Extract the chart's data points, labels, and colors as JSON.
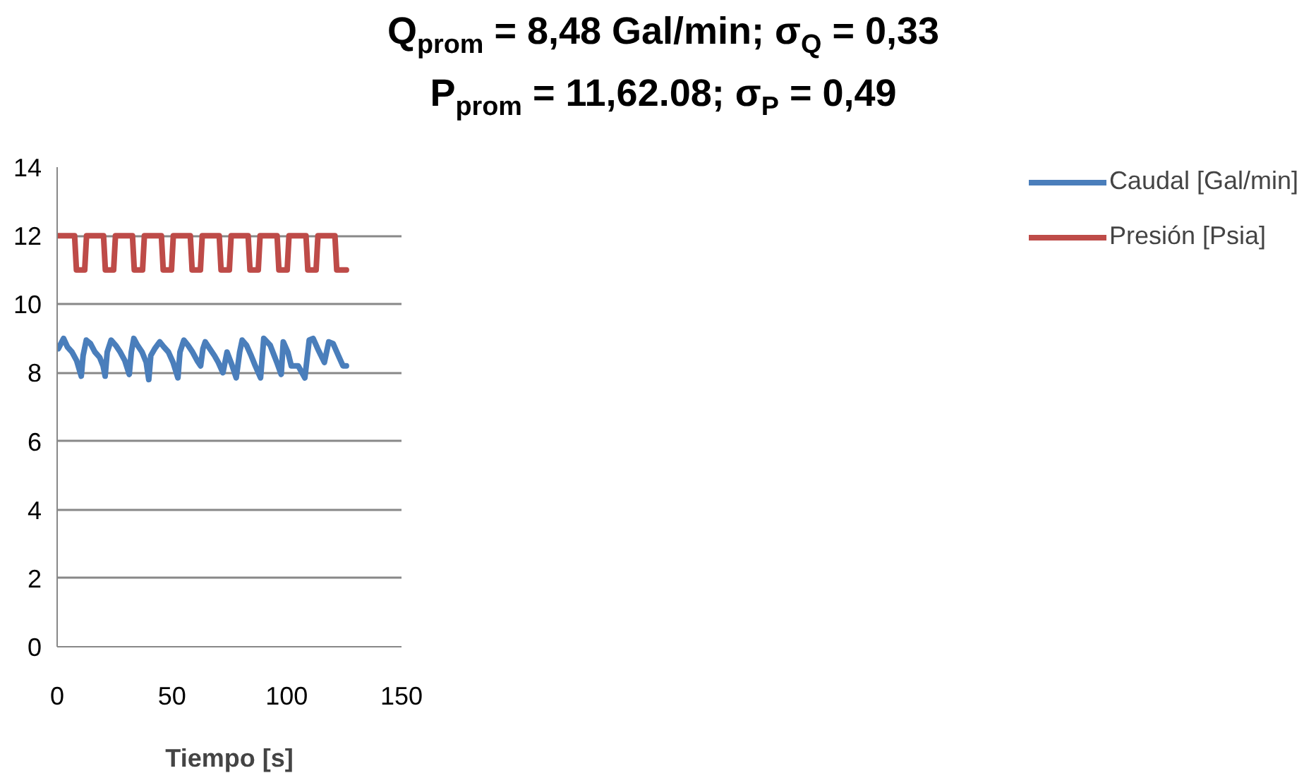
{
  "chart_data": {
    "type": "line",
    "title": "Q$_{prom}$ = 8,48 Gal/min; σ$_{Q}$ = 0,33\nP$_{prom}$ = 11,62.08; σ$_{P}$ = 0,49",
    "xlabel": "Tiempo [s]",
    "xlim": [
      0,
      150
    ],
    "xticks": [
      0,
      50,
      100,
      150
    ],
    "ylim": [
      0,
      14
    ],
    "yticks": [
      0,
      2,
      4,
      6,
      8,
      10,
      12,
      14
    ],
    "grid": "y",
    "legend": "right",
    "series": [
      {
        "name": "Caudal [Gal/min]",
        "color": "#4a7ebb",
        "x": [
          0.5,
          2.8,
          4.5,
          6.5,
          8.5,
          10.5,
          11.3,
          12.7,
          14.5,
          16.5,
          18.5,
          20.0,
          20.9,
          21.8,
          23.5,
          25.5,
          27.5,
          29.5,
          31.4,
          32.3,
          33.4,
          35,
          37,
          38.8,
          39.9,
          40.8,
          42.5,
          44.7,
          46.5,
          48.5,
          50.5,
          52.6,
          53.5,
          55.2,
          57,
          59,
          61,
          62.5,
          63.5,
          64.5,
          66.5,
          68.5,
          70.2,
          72.2,
          74,
          76,
          78,
          79.5,
          80.6,
          82.5,
          84.5,
          86.3,
          88.6,
          90,
          92.8,
          95.7,
          97.6,
          98.5,
          100.5,
          102,
          105,
          107.9,
          109.8,
          111.5,
          113.5,
          116.4,
          118.3,
          120.2,
          122.5,
          124.5,
          126
        ],
        "values": [
          8.7,
          9.0,
          8.75,
          8.6,
          8.35,
          7.9,
          8.5,
          8.95,
          8.85,
          8.6,
          8.45,
          8.2,
          7.9,
          8.6,
          8.95,
          8.8,
          8.6,
          8.35,
          7.95,
          8.6,
          9.0,
          8.8,
          8.6,
          8.3,
          7.8,
          8.5,
          8.7,
          8.9,
          8.75,
          8.6,
          8.3,
          7.85,
          8.6,
          8.95,
          8.8,
          8.6,
          8.35,
          8.2,
          8.7,
          8.9,
          8.7,
          8.5,
          8.3,
          8.0,
          8.6,
          8.25,
          7.85,
          8.6,
          8.95,
          8.8,
          8.5,
          8.2,
          7.85,
          9.0,
          8.8,
          8.3,
          7.95,
          8.9,
          8.6,
          8.2,
          8.2,
          7.85,
          8.95,
          9.0,
          8.7,
          8.3,
          8.9,
          8.85,
          8.5,
          8.2,
          8.2
        ]
      },
      {
        "name": "Presión [Psia]",
        "color": "#be4b48",
        "x": [
          0,
          7.6,
          8.4,
          12.0,
          12.8,
          20.2,
          21.0,
          24.6,
          25.4,
          32.8,
          33.6,
          37.2,
          38.0,
          45.4,
          46.2,
          49.8,
          50.6,
          58.0,
          58.8,
          62.4,
          63.2,
          70.6,
          71.4,
          75.0,
          75.8,
          83.2,
          84.0,
          87.6,
          88.4,
          95.8,
          96.6,
          100.2,
          101.0,
          108.4,
          109.2,
          112.8,
          113.6,
          121.0,
          121.8,
          126.0
        ],
        "values": [
          12,
          12,
          11,
          11,
          12,
          12,
          11,
          11,
          12,
          12,
          11,
          11,
          12,
          12,
          11,
          11,
          12,
          12,
          11,
          11,
          12,
          12,
          11,
          11,
          12,
          12,
          11,
          11,
          12,
          12,
          11,
          11,
          12,
          12,
          11,
          11,
          12,
          12,
          11,
          11
        ]
      }
    ]
  }
}
